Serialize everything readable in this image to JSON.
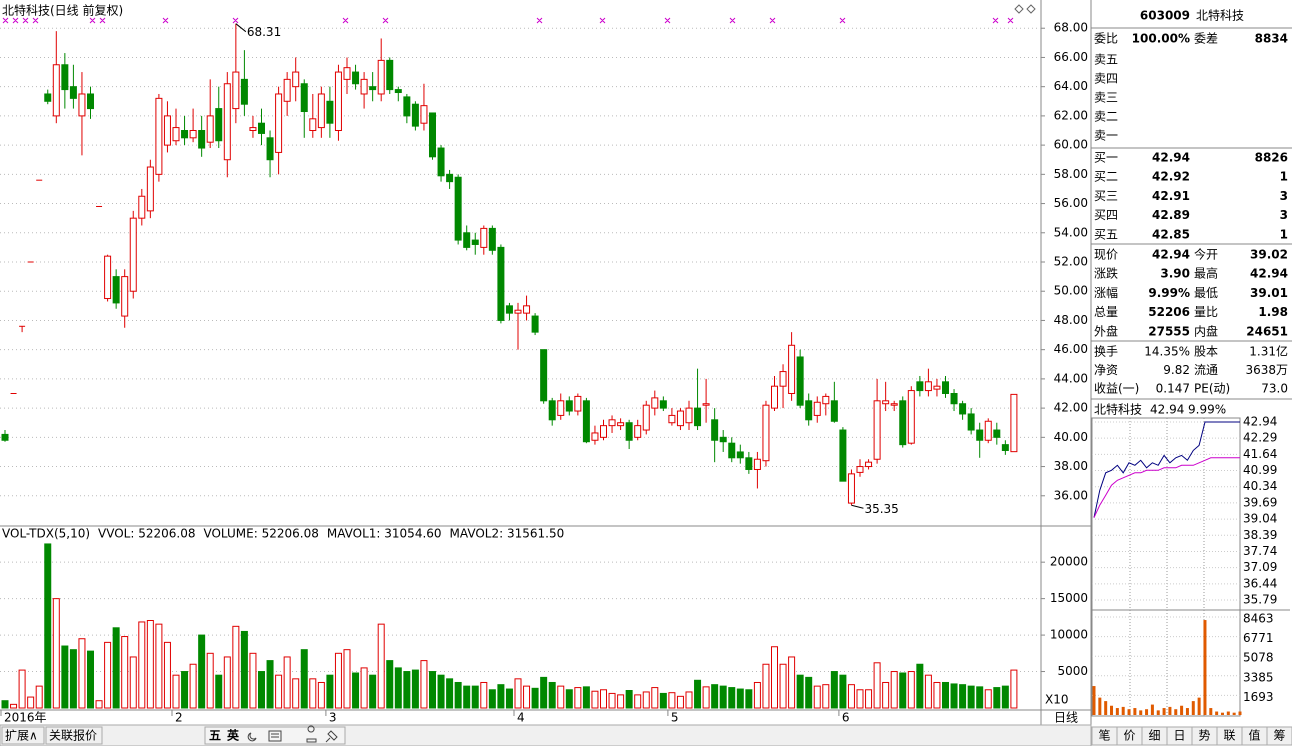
{
  "chart_data": [
    {
      "type": "candlestick",
      "title": "北特科技(日线 前复权)",
      "categories": [
        "2016年",
        null,
        null,
        null,
        null,
        null,
        null,
        null,
        null,
        null,
        null,
        null,
        null,
        null,
        null,
        null,
        null,
        null,
        null,
        null,
        "2",
        null,
        null,
        null,
        null,
        null,
        null,
        null,
        null,
        null,
        null,
        null,
        null,
        null,
        null,
        null,
        null,
        null,
        "3",
        null,
        null,
        null,
        null,
        null,
        null,
        null,
        null,
        null,
        null,
        null,
        null,
        null,
        null,
        null,
        null,
        null,
        null,
        null,
        null,
        null,
        "4",
        null,
        null,
        null,
        null,
        null,
        null,
        null,
        null,
        null,
        null,
        null,
        null,
        null,
        null,
        null,
        null,
        null,
        "5",
        null,
        null,
        null,
        null,
        null,
        null,
        null,
        null,
        null,
        null,
        null,
        null,
        null,
        null,
        null,
        null,
        null,
        null,
        null,
        "6",
        null,
        null,
        null,
        null,
        null,
        null,
        null,
        null,
        null,
        null,
        null,
        null,
        null,
        null,
        null,
        null,
        null,
        null,
        null,
        null
      ],
      "open": [
        40.2,
        43,
        47.6,
        52,
        57.6,
        63.5,
        62,
        65.5,
        64,
        62,
        63.5,
        55.8,
        49.5,
        51,
        48.3,
        50,
        55,
        55.5,
        58,
        60,
        60.3,
        61,
        60.5,
        61,
        60.2,
        62.5,
        59,
        62.5,
        64.5,
        61,
        61.5,
        60.5,
        59.5,
        63,
        64,
        64.2,
        61,
        61.2,
        63,
        61,
        64.5,
        65,
        63.5,
        64,
        63.5,
        65.8,
        63.8,
        63.3,
        62.8,
        61.5,
        62.2,
        59.8,
        58,
        57.8,
        54,
        53.5,
        53,
        54.3,
        53,
        49,
        48.5,
        48.5,
        48.3,
        46,
        42.5,
        41.5,
        42.5,
        41.8,
        42.5,
        39.8,
        40,
        40.8,
        40.8,
        41,
        40,
        40.5,
        42,
        42.5,
        41,
        40.8,
        41,
        42,
        42.2,
        41.2,
        40,
        39.6,
        39,
        38.6,
        37.8,
        38.4,
        42,
        43.5,
        43,
        45.5,
        42.5,
        41.5,
        42.3,
        42.5,
        40.5,
        35.5,
        37.6,
        38,
        38.5,
        42.3,
        42.2,
        42.5,
        39.6,
        43.8,
        43.2,
        43.3,
        43.8,
        43,
        42.3,
        41.6,
        40.5,
        39.8,
        40.5,
        39.5,
        39.02
      ],
      "high": [
        40.5,
        43,
        47.6,
        52,
        57.6,
        63.8,
        67.8,
        66.3,
        65.5,
        65,
        64,
        55.8,
        52.5,
        51.5,
        51.5,
        55.5,
        57,
        59,
        63.5,
        63,
        62.5,
        62,
        62.5,
        62,
        64.5,
        64,
        65,
        68.31,
        66.5,
        62,
        62.5,
        61,
        64,
        65,
        66,
        64.5,
        63.5,
        64,
        64,
        65.5,
        66,
        65.5,
        65,
        65,
        67.3,
        66,
        64,
        63.5,
        63,
        64.2,
        62.2,
        60,
        58.3,
        58,
        54.5,
        54,
        54.5,
        54.5,
        53.2,
        49.2,
        49.2,
        49.7,
        48.5,
        46,
        42.7,
        43,
        42.8,
        43,
        42.7,
        40.8,
        41.2,
        41.5,
        41.3,
        41.2,
        41.2,
        42.5,
        43.2,
        42.8,
        42,
        42,
        42.5,
        44.7,
        44,
        42,
        40.5,
        40,
        39.5,
        39,
        39,
        42.5,
        44.2,
        45,
        47.2,
        46,
        43,
        42.8,
        43,
        43.8,
        40.7,
        37.8,
        38.5,
        38.5,
        44,
        43.8,
        42.5,
        42.8,
        43.5,
        44.2,
        44.7,
        44,
        44.2,
        43.3,
        42.5,
        42,
        41,
        41.3,
        41,
        39.8,
        42.94
      ],
      "low": [
        39.7,
        43,
        47.2,
        52,
        57.6,
        62.8,
        61.5,
        62.5,
        62.5,
        59.3,
        61.8,
        55.8,
        49.3,
        48.8,
        47.5,
        49.5,
        54.5,
        55,
        57.5,
        59.5,
        60,
        60,
        60.2,
        59.2,
        59.8,
        59.8,
        57.8,
        61.5,
        62,
        60.5,
        60,
        57.8,
        58,
        62,
        63,
        60.5,
        60.5,
        60.5,
        60.5,
        60.3,
        63.5,
        63.8,
        62.5,
        63,
        63,
        63.5,
        63,
        61.5,
        61,
        61,
        59,
        57.5,
        57,
        53.2,
        52.8,
        52.5,
        52.5,
        52.5,
        47.8,
        48,
        46,
        48,
        47,
        42.3,
        40.8,
        41.2,
        41.5,
        41.5,
        39.6,
        39.5,
        39.8,
        40.3,
        40.5,
        39.2,
        39.8,
        40.2,
        41.5,
        41.8,
        40.8,
        40.5,
        40.5,
        40.5,
        41,
        38.3,
        39,
        38.3,
        38.2,
        37.5,
        36.5,
        38,
        41.8,
        42,
        42.5,
        42,
        40.8,
        41,
        41.5,
        41,
        37,
        35.35,
        37.3,
        37.8,
        38.2,
        41.8,
        41.8,
        39.3,
        39.5,
        42.8,
        42.8,
        42.8,
        42.7,
        41.8,
        41.2,
        40.2,
        38.6,
        39.6,
        39.5,
        38.8,
        39.01
      ],
      "close": [
        39.8,
        43,
        47.6,
        52,
        57.6,
        63,
        65.5,
        63.8,
        63.2,
        63.5,
        62.5,
        55.8,
        52.4,
        49.2,
        51,
        55,
        56.5,
        58.5,
        63.2,
        62,
        61.2,
        60.5,
        61,
        59.8,
        62,
        60.3,
        64.2,
        65,
        62.8,
        61.2,
        60.8,
        59,
        63.5,
        64.5,
        65,
        62.3,
        61.8,
        63.5,
        61.5,
        65,
        65.3,
        64.2,
        64.5,
        63.8,
        65.8,
        63.8,
        63.6,
        62,
        61.3,
        62.7,
        59.2,
        57.9,
        57.5,
        53.5,
        53,
        53.2,
        54.3,
        52.8,
        48,
        48.5,
        48.7,
        49,
        47.2,
        42.5,
        41.2,
        42.5,
        41.8,
        42.8,
        39.7,
        40.3,
        40.8,
        41.2,
        41,
        39.8,
        40.8,
        42.2,
        42.7,
        42,
        41.5,
        41.8,
        42,
        40.8,
        42.3,
        39.8,
        39.7,
        38.6,
        38.6,
        37.8,
        38.5,
        42.2,
        43.5,
        44.5,
        46.3,
        42.2,
        41.2,
        42.4,
        42.8,
        41.1,
        37,
        37.5,
        38,
        38.3,
        42.5,
        42.5,
        42.3,
        39.5,
        43.2,
        43.2,
        43.8,
        43.5,
        43,
        42.3,
        41.6,
        40.5,
        39.8,
        41.1,
        40,
        39.1,
        42.94
      ],
      "up_color": "#e00000",
      "down_color": "#008800",
      "ylim": [
        34,
        68.7
      ],
      "yticks": [
        {
          "value": 36,
          "label": "36.00"
        },
        {
          "value": 38,
          "label": "38.00"
        },
        {
          "value": 40,
          "label": "40.00"
        },
        {
          "value": 42,
          "label": "42.00"
        },
        {
          "value": 44,
          "label": "44.00"
        },
        {
          "value": 46,
          "label": "46.00"
        },
        {
          "value": 48,
          "label": "48.00"
        },
        {
          "value": 50,
          "label": "50.00"
        },
        {
          "value": 52,
          "label": "52.00"
        },
        {
          "value": 54,
          "label": "54.00"
        },
        {
          "value": 56,
          "label": "56.00"
        },
        {
          "value": 58,
          "label": "58.00"
        },
        {
          "value": 60,
          "label": "60.00"
        },
        {
          "value": 62,
          "label": "62.00"
        },
        {
          "value": 64,
          "label": "64.00"
        },
        {
          "value": 66,
          "label": "66.00"
        },
        {
          "value": 68,
          "label": "68.00"
        }
      ],
      "grid": true,
      "period": "日线"
    },
    {
      "type": "bar",
      "legend": [
        {
          "text": "VOL-TDX(5,10)",
          "color": "#000000"
        },
        {
          "text": "VVOL: 52206.08",
          "color": "#000000"
        },
        {
          "text": "VOLUME: 52206.08",
          "color": "#cc00cc"
        },
        {
          "text": "MAVOL1: 31054.60",
          "color": "#cc00cc"
        },
        {
          "text": "MAVOL2: 31561.50",
          "color": "#808080"
        }
      ],
      "unit_label": "X10",
      "values": [
        1000,
        500,
        5200,
        1500,
        3000,
        22500,
        15000,
        8500,
        8000,
        9500,
        7800,
        1000,
        9000,
        11000,
        9800,
        7000,
        11800,
        12000,
        11500,
        9000,
        4500,
        5000,
        6000,
        10000,
        7500,
        4500,
        7000,
        11200,
        10500,
        7500,
        5000,
        6500,
        4500,
        7000,
        4000,
        8000,
        4000,
        3500,
        4500,
        7500,
        8000,
        4800,
        5500,
        4500,
        11500,
        6500,
        5500,
        5000,
        5200,
        6500,
        5000,
        4500,
        4000,
        3500,
        3000,
        3000,
        3500,
        2500,
        3200,
        2600,
        4000,
        3000,
        2700,
        4200,
        3500,
        3000,
        2500,
        2800,
        2900,
        2300,
        2500,
        2000,
        1800,
        2400,
        1800,
        2200,
        2800,
        2000,
        2100,
        1600,
        2200,
        3800,
        2900,
        3200,
        3000,
        2800,
        2600,
        2500,
        3500,
        6000,
        8400,
        6000,
        7000,
        4500,
        4200,
        3000,
        3200,
        5000,
        4500,
        3200,
        2500,
        2500,
        6200,
        3500,
        5000,
        4800,
        5000,
        6000,
        4500,
        3500,
        3500,
        3300,
        3200,
        3000,
        2900,
        2500,
        2800,
        3000,
        5200
      ],
      "ylim": [
        0,
        24000
      ],
      "yticks": [
        5000,
        10000,
        15000,
        20000
      ],
      "grid": true
    },
    {
      "type": "line",
      "title": "北特科技",
      "price": "42.94",
      "change": "9.99%",
      "series": [
        {
          "color": "#000080",
          "values": [
            39.1,
            40.2,
            40.9,
            41.0,
            41.2,
            40.9,
            41.3,
            41.2,
            41.4,
            41.1,
            41.3,
            41.2,
            41.6,
            41.3,
            41.5,
            41.6,
            41.4,
            41.8,
            42.0,
            42.94,
            42.94,
            42.94,
            42.94,
            42.94,
            42.94,
            42.94
          ]
        },
        {
          "color": "#cc00cc",
          "values": [
            39.1,
            39.6,
            40.0,
            40.4,
            40.6,
            40.7,
            40.8,
            40.9,
            40.9,
            41.0,
            41.0,
            41.0,
            41.1,
            41.1,
            41.1,
            41.2,
            41.2,
            41.2,
            41.3,
            41.4,
            41.5,
            41.5,
            41.5,
            41.5,
            41.5,
            41.5
          ]
        }
      ],
      "ylim": [
        35.79,
        42.94
      ],
      "yticks": [
        42.94,
        42.29,
        41.64,
        40.99,
        40.34,
        39.69,
        39.04,
        38.39,
        37.74,
        37.09,
        36.44,
        35.79
      ]
    },
    {
      "type": "bar",
      "color": "#e05a00",
      "values": [
        2500,
        1500,
        1200,
        800,
        600,
        700,
        500,
        600,
        400,
        500,
        900,
        400,
        600,
        700,
        500,
        800,
        600,
        1200,
        1500,
        8200,
        600,
        300,
        200,
        300,
        200,
        300
      ],
      "ylim": [
        0,
        8463
      ],
      "yticks": [
        8463,
        6771,
        5078,
        3385,
        1693
      ]
    }
  ],
  "quote": {
    "code": "603009",
    "name": "北特科技",
    "order_ratio": [
      "委比",
      "100.00%",
      "委差",
      "8834"
    ],
    "sell": [
      "卖五",
      "卖四",
      "卖三",
      "卖二",
      "卖一"
    ],
    "buy": [
      [
        "买一",
        "42.94",
        "8826"
      ],
      [
        "买二",
        "42.92",
        "1"
      ],
      [
        "买三",
        "42.91",
        "3"
      ],
      [
        "买四",
        "42.89",
        "3"
      ],
      [
        "买五",
        "42.85",
        "1"
      ]
    ],
    "stats": [
      [
        [
          "现价",
          "42.94",
          "#e00000"
        ],
        [
          "今开",
          "39.02",
          "#008800"
        ]
      ],
      [
        [
          "涨跌",
          "3.90",
          "#e00000"
        ],
        [
          "最高",
          "42.94",
          "#e00000"
        ]
      ],
      [
        [
          "涨幅",
          "9.99%",
          "#e00000"
        ],
        [
          "最低",
          "39.01",
          "#008800"
        ]
      ],
      [
        [
          "总量",
          "52206",
          "#c06000"
        ],
        [
          "量比",
          "1.98",
          "#e00000"
        ]
      ],
      [
        [
          "外盘",
          "27555",
          "#e00000"
        ],
        [
          "内盘",
          "24651",
          "#008800"
        ]
      ]
    ],
    "fundamentals": [
      [
        [
          "换手",
          "14.35%"
        ],
        [
          "股本",
          "1.31亿"
        ]
      ],
      [
        [
          "净资",
          "9.82"
        ],
        [
          "流通",
          "3638万"
        ]
      ],
      [
        [
          "收益(一)",
          "0.147"
        ],
        [
          "PE(动)",
          "73.0"
        ]
      ]
    ]
  },
  "toolbar": {
    "left": [
      "扩展∧",
      "关联报价"
    ],
    "ime": [
      "五",
      "英"
    ],
    "tabs": [
      "笔",
      "价",
      "细",
      "日",
      "势",
      "联",
      "值",
      "筹"
    ],
    "active_tab": "势"
  }
}
